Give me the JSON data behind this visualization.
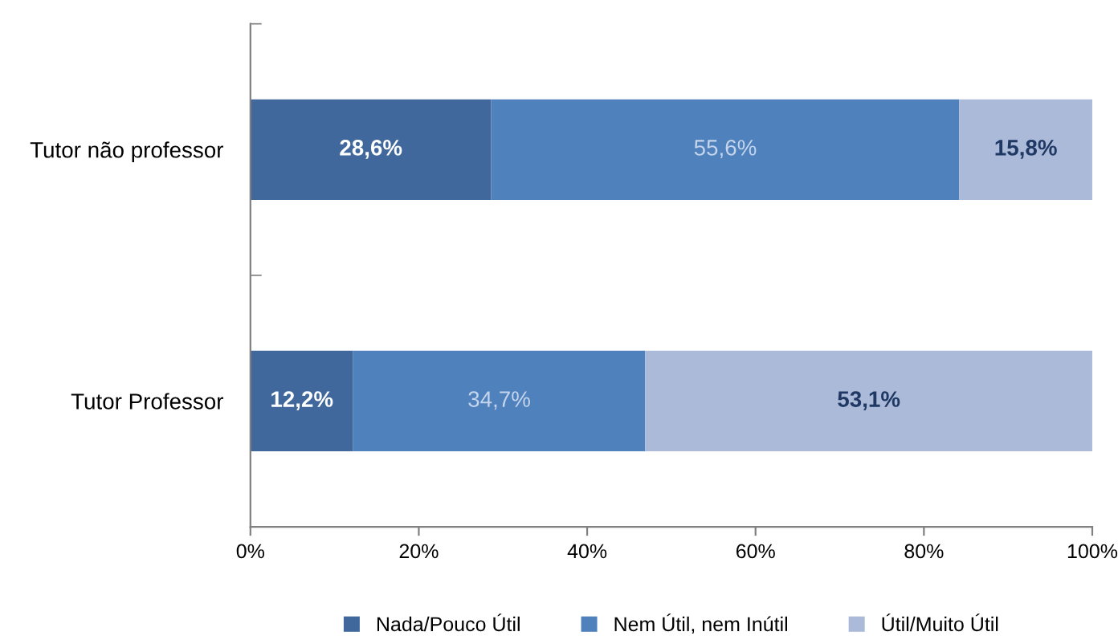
{
  "chart_data": {
    "type": "bar",
    "orientation": "horizontal",
    "stacked": true,
    "categories": [
      "Tutor não professor",
      "Tutor Professor"
    ],
    "series": [
      {
        "name": "Nada/Pouco Útil",
        "color": "#41689c",
        "values": [
          28.6,
          12.2
        ],
        "value_labels": [
          "28,6%",
          "12,2%"
        ]
      },
      {
        "name": "Nem Útil, nem Inútil",
        "color": "#4f81bd",
        "values": [
          55.6,
          34.7
        ],
        "value_labels": [
          "55,6%",
          "34,7%"
        ]
      },
      {
        "name": "Útil/Muito Útil",
        "color": "#aabad8",
        "values": [
          15.8,
          53.1
        ],
        "value_labels": [
          "15,8%",
          "53,1%"
        ]
      }
    ],
    "xlim": [
      0,
      100
    ],
    "xticks": [
      {
        "value": 0,
        "label": "0%"
      },
      {
        "value": 20,
        "label": "20%"
      },
      {
        "value": 40,
        "label": "40%"
      },
      {
        "value": 60,
        "label": "60%"
      },
      {
        "value": 80,
        "label": "80%"
      },
      {
        "value": 100,
        "label": "100%"
      }
    ],
    "grid": false,
    "legend": "bottom"
  }
}
